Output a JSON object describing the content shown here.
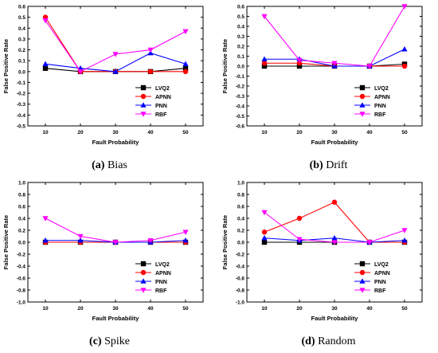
{
  "chart_data": [
    {
      "type": "line",
      "caption_label": "(a)",
      "caption_text": "Bias",
      "xlabel": "Fault Probability",
      "ylabel": "False Positive Rate",
      "x": [
        10,
        20,
        30,
        40,
        50
      ],
      "xlim": [
        5,
        55
      ],
      "ylim": [
        -0.5,
        0.6
      ],
      "yticks": [
        -0.5,
        -0.4,
        -0.3,
        -0.2,
        -0.1,
        0.0,
        0.1,
        0.2,
        0.3,
        0.4,
        0.5,
        0.6
      ],
      "series": [
        {
          "name": "LVQ2",
          "color": "#000000",
          "marker": "square",
          "values": [
            0.03,
            0.0,
            0.0,
            0.0,
            0.03
          ]
        },
        {
          "name": "APNN",
          "color": "#ff0000",
          "marker": "circle",
          "values": [
            0.5,
            0.0,
            0.0,
            0.0,
            0.0
          ]
        },
        {
          "name": "PNN",
          "color": "#0000ff",
          "marker": "triangle-up",
          "values": [
            0.07,
            0.03,
            0.0,
            0.17,
            0.07
          ]
        },
        {
          "name": "RBF",
          "color": "#ff00ff",
          "marker": "triangle-down",
          "values": [
            0.47,
            0.0,
            0.16,
            0.2,
            0.37
          ]
        }
      ]
    },
    {
      "type": "line",
      "caption_label": "(b)",
      "caption_text": "Drift",
      "xlabel": "Fault Probability",
      "ylabel": "False Positive Rate",
      "x": [
        10,
        20,
        30,
        40,
        50
      ],
      "xlim": [
        5,
        55
      ],
      "ylim": [
        -0.6,
        0.6
      ],
      "yticks": [
        -0.6,
        -0.5,
        -0.4,
        -0.3,
        -0.2,
        -0.1,
        0.0,
        0.1,
        0.2,
        0.3,
        0.4,
        0.5,
        0.6
      ],
      "series": [
        {
          "name": "LVQ2",
          "color": "#000000",
          "marker": "square",
          "values": [
            0.0,
            0.0,
            0.0,
            0.0,
            0.02
          ]
        },
        {
          "name": "APNN",
          "color": "#ff0000",
          "marker": "circle",
          "values": [
            0.03,
            0.03,
            0.0,
            0.0,
            0.0
          ]
        },
        {
          "name": "PNN",
          "color": "#0000ff",
          "marker": "triangle-up",
          "values": [
            0.07,
            0.07,
            0.0,
            0.0,
            0.17
          ]
        },
        {
          "name": "RBF",
          "color": "#ff00ff",
          "marker": "triangle-down",
          "values": [
            0.5,
            0.06,
            0.03,
            0.0,
            0.6
          ]
        }
      ]
    },
    {
      "type": "line",
      "caption_label": "(c)",
      "caption_text": "Spike",
      "xlabel": "Fault Probability",
      "ylabel": "False Positive Rate",
      "x": [
        10,
        20,
        30,
        40,
        50
      ],
      "xlim": [
        5,
        55
      ],
      "ylim": [
        -1.0,
        1.0
      ],
      "yticks": [
        -1.0,
        -0.8,
        -0.6,
        -0.4,
        -0.2,
        0.0,
        0.2,
        0.4,
        0.6,
        0.8,
        1.0
      ],
      "series": [
        {
          "name": "LVQ2",
          "color": "#000000",
          "marker": "square",
          "values": [
            0.0,
            0.0,
            0.0,
            0.0,
            0.0
          ]
        },
        {
          "name": "APNN",
          "color": "#ff0000",
          "marker": "circle",
          "values": [
            0.0,
            0.0,
            0.0,
            0.0,
            0.0
          ]
        },
        {
          "name": "PNN",
          "color": "#0000ff",
          "marker": "triangle-up",
          "values": [
            0.03,
            0.03,
            0.0,
            0.0,
            0.03
          ]
        },
        {
          "name": "RBF",
          "color": "#ff00ff",
          "marker": "triangle-down",
          "values": [
            0.4,
            0.1,
            0.0,
            0.03,
            0.17
          ]
        }
      ]
    },
    {
      "type": "line",
      "caption_label": "(d)",
      "caption_text": "Random",
      "xlabel": "Fault Probability",
      "ylabel": "False Positive Rate",
      "x": [
        10,
        20,
        30,
        40,
        50
      ],
      "xlim": [
        5,
        55
      ],
      "ylim": [
        -1.0,
        1.0
      ],
      "yticks": [
        -1.0,
        -0.8,
        -0.6,
        -0.4,
        -0.2,
        0.0,
        0.2,
        0.4,
        0.6,
        0.8,
        1.0
      ],
      "series": [
        {
          "name": "LVQ2",
          "color": "#000000",
          "marker": "square",
          "values": [
            0.0,
            0.0,
            0.0,
            0.0,
            0.0
          ]
        },
        {
          "name": "APNN",
          "color": "#ff0000",
          "marker": "circle",
          "values": [
            0.17,
            0.4,
            0.67,
            0.0,
            0.0
          ]
        },
        {
          "name": "PNN",
          "color": "#0000ff",
          "marker": "triangle-up",
          "values": [
            0.07,
            0.03,
            0.07,
            0.0,
            0.03
          ]
        },
        {
          "name": "RBF",
          "color": "#ff00ff",
          "marker": "triangle-down",
          "values": [
            0.5,
            0.05,
            0.0,
            0.0,
            0.2
          ]
        }
      ]
    }
  ]
}
